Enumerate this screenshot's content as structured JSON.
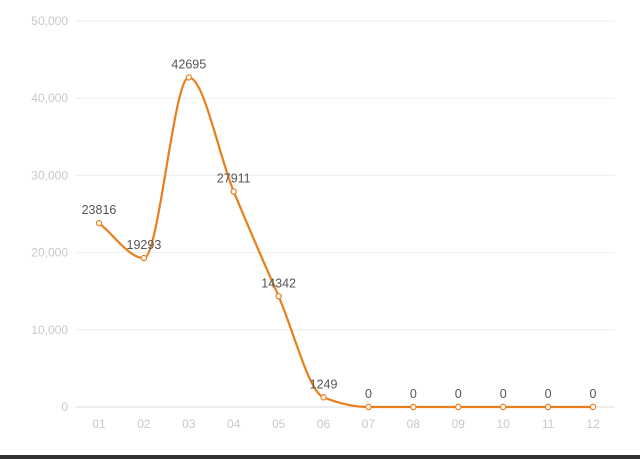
{
  "chart_data": {
    "type": "line",
    "title": "",
    "xlabel": "",
    "ylabel": "",
    "categories": [
      "01",
      "02",
      "03",
      "04",
      "05",
      "06",
      "07",
      "08",
      "09",
      "10",
      "11",
      "12"
    ],
    "series": [
      {
        "values": [
          23816,
          19293,
          42695,
          27911,
          14342,
          1249,
          0,
          0,
          0,
          0,
          0,
          0
        ]
      }
    ],
    "ylim": [
      0,
      50000
    ],
    "yticks": [
      0,
      10000,
      20000,
      30000,
      40000,
      50000
    ],
    "ytick_labels": [
      "0",
      "10,000",
      "20,000",
      "30,000",
      "40,000",
      "50,000"
    ],
    "data_labels": [
      "23816",
      "19293",
      "42695",
      "27911",
      "14342",
      "1249",
      "0",
      "0",
      "0",
      "0",
      "0",
      "0"
    ],
    "grid": true,
    "smooth": true,
    "colors": {
      "line": "#e87e1c",
      "grid": "#eeeeee",
      "tick_text": "#c8c8c8",
      "label_text": "#555555"
    }
  }
}
